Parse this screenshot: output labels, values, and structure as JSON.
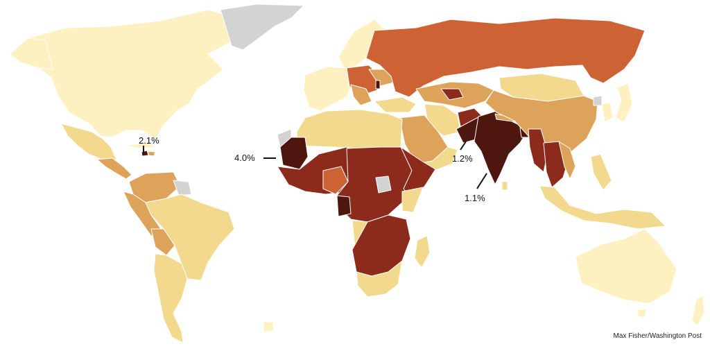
{
  "map": {
    "type": "choropleth-world",
    "colors": {
      "ocean": "#ffffff",
      "level1": "#fdf1c2",
      "level2": "#f3d98e",
      "level3": "#dea35a",
      "level4": "#cd6234",
      "level5": "#8c2a1c",
      "level6": "#4d160f",
      "nodata": "#d3d3d3",
      "border": "#ffffff"
    },
    "callouts": [
      {
        "id": "haiti",
        "label": "2.1%"
      },
      {
        "id": "mauritania",
        "label": "4.0%"
      },
      {
        "id": "pakistan",
        "label": "1.2%"
      },
      {
        "id": "india",
        "label": "1.1%"
      }
    ],
    "credit": "Max Fisher/Washington Post"
  }
}
